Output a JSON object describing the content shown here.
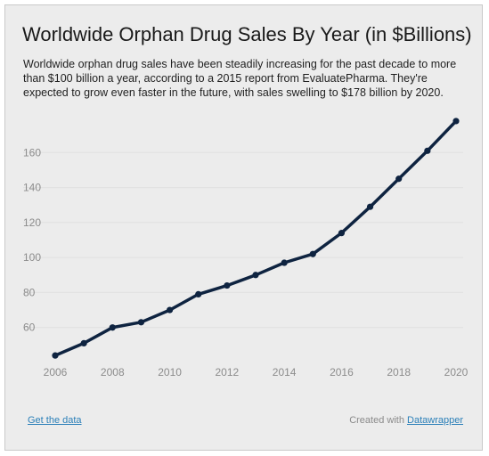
{
  "title": "Worldwide Orphan Drug Sales By Year (in $Billions)",
  "description": "Worldwide orphan drug sales have been steadily increasing for the past decade to more than $100 billion a year, according to a 2015 report from EvaluatePharma. They're expected to grow even faster in the future, with sales swelling to $178 billion by 2020.",
  "footer": {
    "get_data_label": "Get the data",
    "created_with_label": "Created with",
    "tool_link_label": "Datawrapper"
  },
  "colors": {
    "line": "#0e2340",
    "background": "#ececec",
    "grid": "#e0e0e0",
    "tick_text": "#8c8c8c",
    "link": "#2a7fb8"
  },
  "chart_data": {
    "type": "line",
    "title": "Worldwide Orphan Drug Sales By Year (in $Billions)",
    "xlabel": "",
    "ylabel": "",
    "x": [
      2006,
      2007,
      2008,
      2009,
      2010,
      2011,
      2012,
      2013,
      2014,
      2015,
      2016,
      2017,
      2018,
      2019,
      2020
    ],
    "series": [
      {
        "values": [
          44,
          51,
          60,
          63,
          70,
          79,
          84,
          90,
          97,
          102,
          114,
          129,
          145,
          161,
          178
        ]
      }
    ],
    "xlim": [
      2006,
      2020
    ],
    "ylim": [
      40,
      180
    ],
    "x_ticks": [
      2006,
      2008,
      2010,
      2012,
      2014,
      2016,
      2018,
      2020
    ],
    "y_ticks": [
      60,
      80,
      100,
      120,
      140,
      160
    ],
    "grid": true,
    "markers": true
  }
}
